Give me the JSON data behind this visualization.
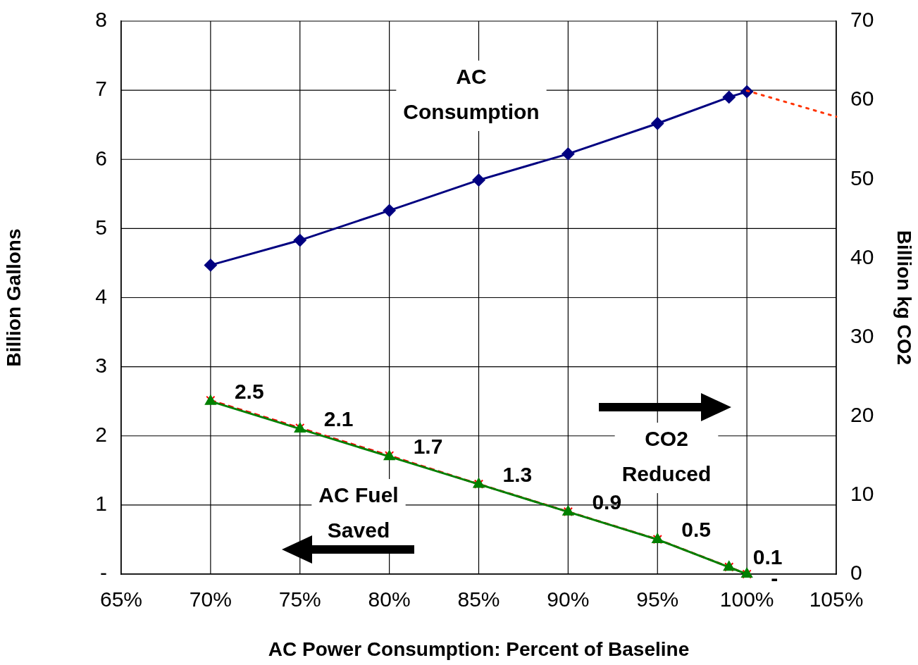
{
  "chart_data": {
    "type": "line",
    "xlabel": "AC Power Consumption: Percent of Baseline",
    "ylabel": "Billion Gallons",
    "y2label": "Billion kg CO2",
    "xlim": [
      65,
      105
    ],
    "xticks": [
      {
        "value": 65,
        "label": "65%"
      },
      {
        "value": 70,
        "label": "70%"
      },
      {
        "value": 75,
        "label": "75%"
      },
      {
        "value": 80,
        "label": "80%"
      },
      {
        "value": 85,
        "label": "85%"
      },
      {
        "value": 90,
        "label": "90%"
      },
      {
        "value": 95,
        "label": "95%"
      },
      {
        "value": 100,
        "label": "100%"
      },
      {
        "value": 105,
        "label": "105%"
      }
    ],
    "ylim": [
      0,
      8
    ],
    "yticks": [
      {
        "value": 0,
        "label": "-"
      },
      1,
      2,
      3,
      4,
      5,
      6,
      7,
      8
    ],
    "y2lim": [
      0,
      70
    ],
    "y2ticks": [
      0,
      10,
      20,
      30,
      40,
      50,
      60,
      70
    ],
    "grid": true,
    "legend": false,
    "series": [
      {
        "color": "#000080",
        "marker": "diamond",
        "line_style": "solid",
        "x": [
          70,
          75,
          80,
          85,
          90,
          95,
          99,
          100
        ],
        "values": [
          4.47,
          4.83,
          5.26,
          5.7,
          6.08,
          6.52,
          6.9,
          6.98
        ]
      },
      {
        "color": "#ff0000",
        "marker": "cross",
        "line_style": "dashed",
        "axis": "y2",
        "x": [
          70,
          75,
          80,
          85,
          90,
          95,
          99,
          100
        ],
        "values": [
          22,
          18.5,
          15,
          11.4,
          7.9,
          4.4,
          0.9,
          0
        ]
      },
      {
        "color": "#008000",
        "marker": "triangle",
        "line_style": "solid",
        "x": [
          70,
          75,
          80,
          85,
          90,
          95,
          99,
          100
        ],
        "values": [
          2.5,
          2.1,
          1.7,
          1.3,
          0.9,
          0.5,
          0.1,
          0
        ],
        "value_labels": [
          "2.5",
          "2.1",
          "1.7",
          "1.3",
          "0.9",
          "0.5",
          "0.1",
          "-"
        ]
      },
      {
        "color": "#ff3300",
        "marker": "none",
        "line_style": "dotted",
        "axis": "y2",
        "x": [
          100,
          105
        ],
        "values": [
          61.2,
          57.9
        ]
      }
    ],
    "annotations": [
      "AC Consumption",
      "CO2 Reduced",
      "AC Fuel Saved"
    ]
  }
}
